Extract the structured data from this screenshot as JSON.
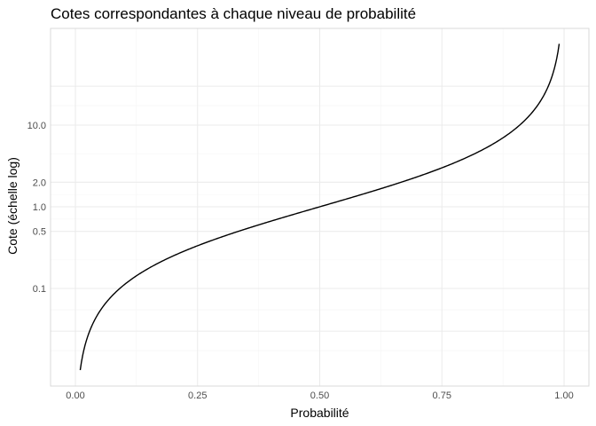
{
  "chart_data": {
    "type": "line",
    "title": "Cotes correspondantes à chaque niveau de probabilité",
    "xlabel": "Probabilité",
    "ylabel": "Cote (échelle log)",
    "x_ticks": [
      {
        "value": 0,
        "label": "0.00"
      },
      {
        "value": 0.25,
        "label": "0.25"
      },
      {
        "value": 0.5,
        "label": "0.50"
      },
      {
        "value": 0.75,
        "label": "0.75"
      },
      {
        "value": 1,
        "label": "1.00"
      }
    ],
    "y_ticks": [
      {
        "value": 0.1,
        "label": "0.1"
      },
      {
        "value": 0.5,
        "label": "0.5"
      },
      {
        "value": 1,
        "label": "1.0"
      },
      {
        "value": 2,
        "label": "2.0"
      },
      {
        "value": 10,
        "label": "10.0"
      }
    ],
    "xlim": [
      0,
      1
    ],
    "ylim": [
      0.01,
      100
    ],
    "y_scale": "log",
    "grid": true,
    "series": [
      {
        "values_formula": "p / (1 - p)",
        "x": [
          0.0099,
          0.02,
          0.03,
          0.05,
          0.075,
          0.1,
          0.125,
          0.15,
          0.2,
          0.25,
          0.3,
          0.35,
          0.4,
          0.45,
          0.5,
          0.55,
          0.6,
          0.65,
          0.7,
          0.75,
          0.8,
          0.85,
          0.875,
          0.9,
          0.925,
          0.95,
          0.97,
          0.98,
          0.99
        ],
        "y": [
          0.01,
          0.0204,
          0.0309,
          0.0526,
          0.0811,
          0.1111,
          0.1429,
          0.1765,
          0.25,
          0.3333,
          0.4286,
          0.5385,
          0.6667,
          0.8182,
          1.0,
          1.2222,
          1.5,
          1.8571,
          2.3333,
          3.0,
          4.0,
          5.6667,
          7.0,
          9.0,
          12.333,
          19.0,
          32.333,
          49.0,
          99.0
        ]
      }
    ]
  }
}
